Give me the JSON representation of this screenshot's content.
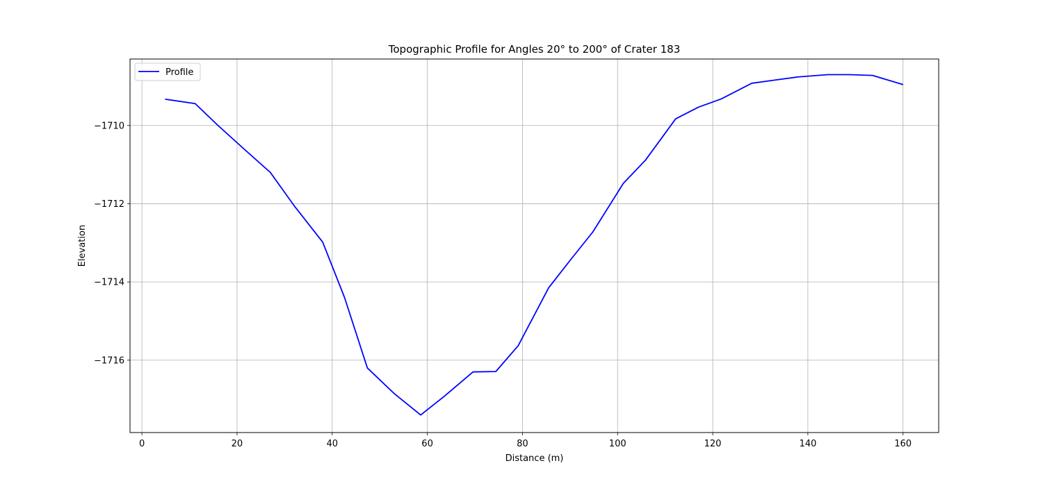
{
  "chart_data": {
    "type": "line",
    "title": "Topographic Profile for Angles 20° to 200° of Crater 183",
    "xlabel": "Distance (m)",
    "ylabel": "Elevation",
    "xlim": [
      -2.5,
      167.5
    ],
    "ylim": [
      -1717.85,
      -1708.3
    ],
    "xticks": [
      0,
      20,
      40,
      60,
      80,
      100,
      120,
      140,
      160
    ],
    "yticks": [
      -1716,
      -1714,
      -1712,
      -1710
    ],
    "xtick_labels": [
      "0",
      "20",
      "40",
      "60",
      "80",
      "100",
      "120",
      "140",
      "160"
    ],
    "ytick_labels": [
      "−1716",
      "−1714",
      "−1712",
      "−1710"
    ],
    "grid": true,
    "legend_position": "top-left",
    "colors": {
      "line": "#0000ff",
      "grid": "#b0b0b0"
    },
    "series": [
      {
        "name": "Profile",
        "x": [
          5,
          11.2,
          16,
          21,
          27,
          32,
          38,
          42.6,
          47.4,
          53,
          58.6,
          63.5,
          69.6,
          74.4,
          79.1,
          85.5,
          90,
          94.8,
          101.2,
          105.9,
          112.2,
          117,
          121.8,
          128.2,
          133,
          137.8,
          144.2,
          148.7,
          153.6,
          159.9
        ],
        "y": [
          -1709.33,
          -1709.44,
          -1710.0,
          -1710.55,
          -1711.2,
          -1712.05,
          -1712.98,
          -1714.4,
          -1716.2,
          -1716.85,
          -1717.4,
          -1716.93,
          -1716.3,
          -1716.29,
          -1715.63,
          -1714.15,
          -1713.45,
          -1712.72,
          -1711.48,
          -1710.88,
          -1709.83,
          -1709.53,
          -1709.32,
          -1708.92,
          -1708.84,
          -1708.76,
          -1708.7,
          -1708.7,
          -1708.72,
          -1708.95
        ]
      }
    ]
  }
}
